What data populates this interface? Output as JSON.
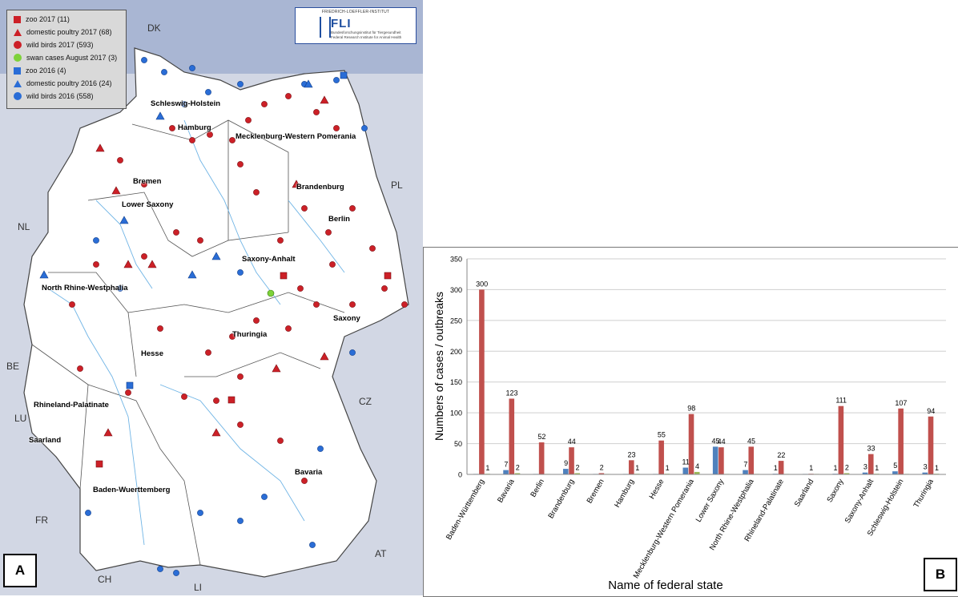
{
  "panel_a": {
    "tag": "A",
    "legend": [
      {
        "label": "zoo 2017 (11)",
        "icon": "red-square-icon",
        "color": "#cc2027",
        "shape": "square"
      },
      {
        "label": "domestic poultry 2017 (68)",
        "icon": "red-triangle-icon",
        "color": "#cc2027",
        "shape": "triangle"
      },
      {
        "label": "wild birds 2017 (593)",
        "icon": "red-circle-icon",
        "color": "#cc2027",
        "shape": "circle"
      },
      {
        "label": "swan cases August 2017 (3)",
        "icon": "green-circle-icon",
        "color": "#7ed23a",
        "shape": "circle"
      },
      {
        "label": "zoo 2016 (4)",
        "icon": "blue-square-icon",
        "color": "#2a6dd6",
        "shape": "square"
      },
      {
        "label": "domestic poultry 2016 (24)",
        "icon": "blue-triangle-icon",
        "color": "#2a6dd6",
        "shape": "triangle"
      },
      {
        "label": "wild birds 2016 (558)",
        "icon": "blue-circle-icon",
        "color": "#2a6dd6",
        "shape": "circle"
      }
    ],
    "logo": {
      "top_text": "FRIEDRICH-LOEFFLER-INSTITUT",
      "acronym": "FLI",
      "sub1": "Bundesforschungsinstitut für Tiergesundheit",
      "sub2": "Federal Research Institute for Animal Health"
    },
    "countries": [
      "DK",
      "PL",
      "NL",
      "BE",
      "LU",
      "FR",
      "CH",
      "LI",
      "AT",
      "CZ"
    ],
    "states": [
      "Schleswig-Holstein",
      "Hamburg",
      "Mecklenburg-Western Pomerania",
      "Bremen",
      "Brandenburg",
      "Lower Saxony",
      "Berlin",
      "Saxony-Anhalt",
      "North Rhine-Westphalia",
      "Saxony",
      "Thuringia",
      "Hesse",
      "Rhineland-Palatinate",
      "Saarland",
      "Bavaria",
      "Baden-Wuerttemberg"
    ]
  },
  "panel_b": {
    "tag": "B"
  },
  "chart_data": {
    "type": "bar",
    "xlabel": "Name of federal state",
    "ylabel": "Numbers of cases / outbreaks",
    "ylim": [
      0,
      350
    ],
    "yticks": [
      0,
      50,
      100,
      150,
      200,
      250,
      300,
      350
    ],
    "grid": true,
    "categories": [
      "Baden-Württemberg",
      "Bavaria",
      "Berlin",
      "Brandenburg",
      "Bremen",
      "Hamburg",
      "Hesse",
      "Mecklenburg-Western Pomerania",
      "Lower Saxony",
      "North Rhine-Westphalia",
      "Rhineland-Palatinate",
      "Saarland",
      "Saxony",
      "Saxony-Anhalt",
      "Schleswig-Holstein",
      "Thuringia"
    ],
    "series": [
      {
        "color": "#4f81bd",
        "values": [
          0,
          7,
          0,
          9,
          0,
          0,
          0,
          11,
          45,
          7,
          1,
          0,
          1,
          3,
          5,
          3
        ]
      },
      {
        "color": "#c0504d",
        "values": [
          300,
          123,
          52,
          44,
          2,
          23,
          55,
          98,
          44,
          45,
          22,
          1,
          111,
          33,
          107,
          94
        ]
      },
      {
        "color": "#9bbb59",
        "values": [
          1,
          2,
          0,
          2,
          0,
          1,
          1,
          4,
          0,
          0,
          0,
          0,
          2,
          1,
          0,
          1
        ]
      }
    ],
    "data_labels": [
      [
        {
          "v": "300",
          "s": 1
        },
        {
          "v": "1",
          "s": 2
        }
      ],
      [
        {
          "v": "7",
          "s": 0
        },
        {
          "v": "123",
          "s": 1
        },
        {
          "v": "2",
          "s": 2
        }
      ],
      [
        {
          "v": "52",
          "s": 1
        }
      ],
      [
        {
          "v": "9",
          "s": 0
        },
        {
          "v": "44",
          "s": 1
        },
        {
          "v": "2",
          "s": 2
        }
      ],
      [
        {
          "v": "2",
          "s": 1
        }
      ],
      [
        {
          "v": "23",
          "s": 1
        },
        {
          "v": "1",
          "s": 2
        }
      ],
      [
        {
          "v": "55",
          "s": 1
        },
        {
          "v": "1",
          "s": 2
        }
      ],
      [
        {
          "v": "11",
          "s": 0
        },
        {
          "v": "98",
          "s": 1
        },
        {
          "v": "4",
          "s": 2
        }
      ],
      [
        {
          "v": "45",
          "s": 0
        },
        {
          "v": "44",
          "s": 1
        }
      ],
      [
        {
          "v": "7",
          "s": 0
        },
        {
          "v": "45",
          "s": 1
        }
      ],
      [
        {
          "v": "1",
          "s": 0
        },
        {
          "v": "22",
          "s": 1
        }
      ],
      [
        {
          "v": "1",
          "s": 1
        }
      ],
      [
        {
          "v": "1",
          "s": 0
        },
        {
          "v": "111",
          "s": 1
        },
        {
          "v": "2",
          "s": 2
        }
      ],
      [
        {
          "v": "3",
          "s": 0
        },
        {
          "v": "33",
          "s": 1
        },
        {
          "v": "1",
          "s": 2
        }
      ],
      [
        {
          "v": "5",
          "s": 0
        },
        {
          "v": "107",
          "s": 1
        }
      ],
      [
        {
          "v": "3",
          "s": 0
        },
        {
          "v": "94",
          "s": 1
        },
        {
          "v": "1",
          "s": 2
        }
      ]
    ]
  }
}
